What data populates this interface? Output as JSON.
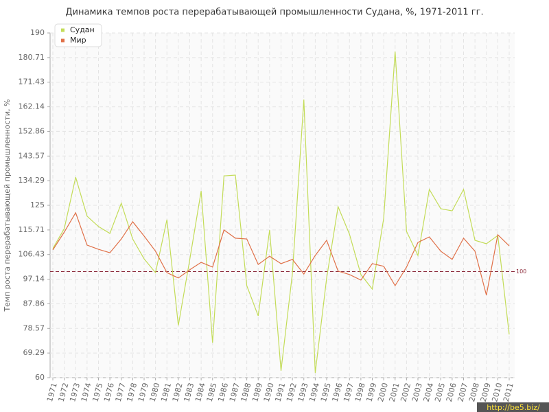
{
  "chart_data": {
    "type": "line",
    "title": "Динамика темпов роста перерабатывающей промышленности Судана, %, 1971-2011 гг.",
    "y_label": "Темп роста перерабатывающей промышленности, %",
    "categories": [
      "1971",
      "1972",
      "1973",
      "1974",
      "1975",
      "1976",
      "1977",
      "1978",
      "1979",
      "1980",
      "1981",
      "1982",
      "1983",
      "1984",
      "1985",
      "1986",
      "1987",
      "1988",
      "1989",
      "1990",
      "1991",
      "1992",
      "1993",
      "1994",
      "1995",
      "1996",
      "1997",
      "1998",
      "1999",
      "2000",
      "2001",
      "2002",
      "2003",
      "2004",
      "2005",
      "2006",
      "2007",
      "2008",
      "2009",
      "2010",
      "2011"
    ],
    "series": [
      {
        "name": "Судан",
        "color": "#c3dc58",
        "values": [
          108.7,
          116.2,
          135.6,
          120.9,
          117.0,
          114.4,
          125.8,
          112.3,
          104.8,
          99.6,
          119.6,
          79.7,
          104.5,
          130.4,
          73.2,
          136.1,
          136.4,
          94.7,
          83.3,
          115.7,
          62.6,
          99.4,
          164.9,
          61.8,
          97.6,
          124.5,
          114.1,
          98.9,
          93.4,
          120.1,
          183.0,
          115.2,
          106.1,
          131.0,
          123.7,
          122.9,
          131.0,
          111.8,
          110.5,
          113.6,
          76.3
        ]
      },
      {
        "name": "Мир",
        "color": "#e07048",
        "values": [
          108.2,
          114.9,
          122.2,
          110.0,
          108.4,
          107.1,
          112.3,
          118.8,
          113.4,
          107.7,
          99.6,
          97.6,
          100.7,
          103.5,
          101.7,
          115.7,
          112.6,
          112.3,
          102.7,
          105.8,
          103.0,
          104.6,
          99.1,
          106.1,
          111.8,
          100.2,
          98.9,
          96.8,
          103.0,
          102.0,
          94.7,
          101.7,
          111.0,
          113.1,
          107.7,
          104.6,
          112.6,
          107.7,
          91.1,
          113.9,
          109.7
        ]
      }
    ],
    "ylim": [
      60,
      190
    ],
    "yticks": [
      60,
      69.29,
      78.57,
      87.86,
      97.14,
      106.43,
      115.71,
      125,
      134.29,
      143.57,
      152.86,
      162.14,
      171.43,
      180.71,
      190
    ],
    "grid": true,
    "legend": "top-left",
    "reference_line": {
      "value": 100,
      "color": "#8b2a3a"
    },
    "watermark": "http://be5.biz/"
  }
}
